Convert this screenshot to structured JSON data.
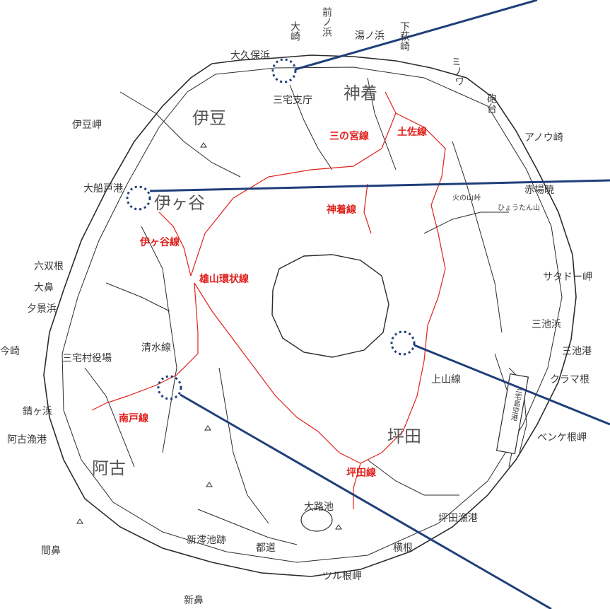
{
  "colors": {
    "road_black": "#2b2b2b",
    "road_red": "#e0201b",
    "callout_line": "#1f3f7a",
    "marker": "#1f3f7a",
    "label": "#3a3a3a"
  },
  "districts": [
    "伊豆",
    "伊ヶ谷",
    "神着",
    "阿古",
    "坪田"
  ],
  "places": {
    "izu_misaki": "伊豆岬",
    "okubohama": "大久保浜",
    "oosaki": "大崎",
    "mae_no_hama": "前ノ浜",
    "yunohama": "湯ノ浜",
    "shimo_hagisaki": "下萩崎",
    "minoura": "ミノワ",
    "hodai": "砲台",
    "anou_zaki": "アノウ崎",
    "akabakkyo": "赤場暁",
    "hinoyama_toge": "火の山峠",
    "hyoutanyama": "ひょうたん山",
    "satado_misaki": "サタドー岬",
    "miike_hama": "三池浜",
    "miike_ko": "三池港",
    "kurama_ne": "クラマ根",
    "benkene_misaki": "ベンケ根岬",
    "tsubota_gyoko": "坪田漁港",
    "yokone": "横根",
    "tsurune_misaki": "ツル根岬",
    "shinhana": "新鼻",
    "todo": "都道",
    "shinmioike_ato": "新澪池跡",
    "oroike": "大路池",
    "mahana": "間鼻",
    "ako_gyoko": "阿古漁港",
    "sabigahama": "錆ヶ浜",
    "imasaki": "今崎",
    "yuukei_hama": "夕景浜",
    "oohana": "大鼻",
    "rokusoune": "六双根",
    "oofunato_ko": "大船戸港",
    "miyake_shicho": "三宅支庁",
    "miyake_village_office": "三宅村役場",
    "airport": "三宅島空港"
  },
  "routes": {
    "sannomiya": "三の宮線",
    "tosa": "土佐線",
    "kamitsuki": "神着線",
    "igaya": "伊ヶ谷線",
    "oyama_loop": "雄山環状線",
    "shimizu": "清水線",
    "nando": "南戸線",
    "kamiyama": "上山線",
    "tsubota": "坪田線"
  }
}
